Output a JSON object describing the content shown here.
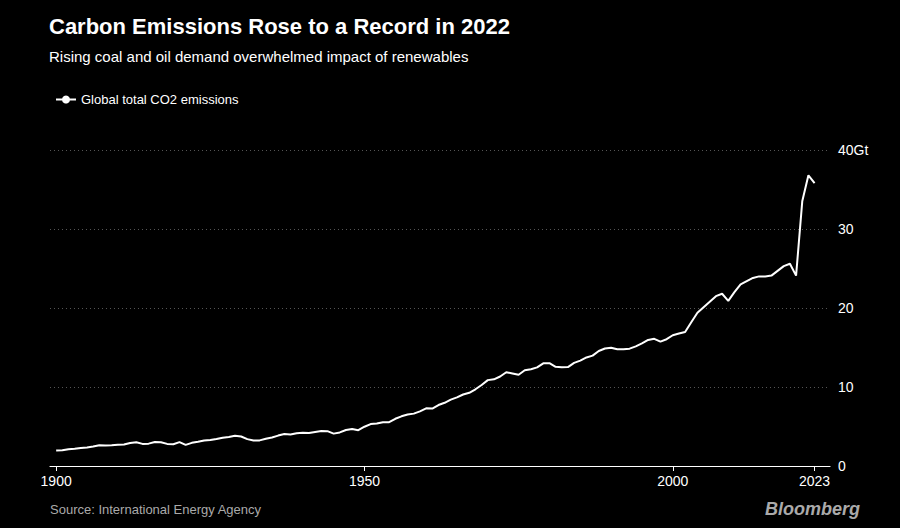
{
  "chart_data": {
    "type": "line",
    "title": "Carbon Emissions Rose to a Record in 2022",
    "subtitle": "Rising coal and oil demand overwhelmed impact of renewables",
    "annotations": [
      "Source: International Energy Agency",
      "Bloomberg"
    ],
    "legend": "top-left",
    "grid": true,
    "xlim": [
      1899,
      2025.5
    ],
    "xticks": [
      1900,
      1950,
      2000,
      2023
    ],
    "ylim": [
      0,
      40
    ],
    "yticks": [
      0,
      10,
      20,
      30,
      {
        "value": 40,
        "label": "40Gt"
      }
    ],
    "x": [
      1900,
      1901,
      1902,
      1903,
      1904,
      1905,
      1906,
      1907,
      1908,
      1909,
      1910,
      1911,
      1912,
      1913,
      1914,
      1915,
      1916,
      1917,
      1918,
      1919,
      1920,
      1921,
      1922,
      1923,
      1924,
      1925,
      1926,
      1927,
      1928,
      1929,
      1930,
      1931,
      1932,
      1933,
      1934,
      1935,
      1936,
      1937,
      1938,
      1939,
      1940,
      1941,
      1942,
      1943,
      1944,
      1945,
      1946,
      1947,
      1948,
      1949,
      1950,
      1951,
      1952,
      1953,
      1954,
      1955,
      1956,
      1957,
      1958,
      1959,
      1960,
      1961,
      1962,
      1963,
      1964,
      1965,
      1966,
      1967,
      1968,
      1969,
      1970,
      1971,
      1972,
      1973,
      1974,
      1975,
      1976,
      1977,
      1978,
      1979,
      1980,
      1981,
      1982,
      1983,
      1984,
      1985,
      1986,
      1987,
      1988,
      1989,
      1990,
      1991,
      1992,
      1993,
      1994,
      1995,
      1996,
      1997,
      1998,
      1999,
      2000,
      2001,
      2002,
      2003,
      2004,
      2005,
      2006,
      2007,
      2008,
      2009,
      2010,
      2011,
      2012,
      2013,
      2014,
      2015,
      2016,
      2017,
      2018,
      2019,
      2020,
      2021,
      2022,
      2023
    ],
    "series": [
      {
        "name": "Global total CO2 emissions",
        "color": "#ffffff",
        "values": [
          1.97,
          2.0,
          2.12,
          2.18,
          2.28,
          2.35,
          2.46,
          2.63,
          2.59,
          2.62,
          2.69,
          2.72,
          2.91,
          3.01,
          2.8,
          2.83,
          3.03,
          3.0,
          2.8,
          2.76,
          3.02,
          2.67,
          2.93,
          3.07,
          3.22,
          3.3,
          3.42,
          3.58,
          3.68,
          3.82,
          3.73,
          3.4,
          3.22,
          3.24,
          3.44,
          3.61,
          3.85,
          4.05,
          3.98,
          4.15,
          4.22,
          4.18,
          4.3,
          4.42,
          4.41,
          4.1,
          4.25,
          4.56,
          4.68,
          4.53,
          4.97,
          5.31,
          5.37,
          5.55,
          5.54,
          5.98,
          6.29,
          6.51,
          6.63,
          6.92,
          7.3,
          7.27,
          7.72,
          8.0,
          8.4,
          8.68,
          9.05,
          9.27,
          9.71,
          10.26,
          10.87,
          10.97,
          11.33,
          11.87,
          11.72,
          11.55,
          12.12,
          12.25,
          12.48,
          13.0,
          13.01,
          12.56,
          12.5,
          12.52,
          13.05,
          13.34,
          13.74,
          13.97,
          14.56,
          14.87,
          14.97,
          14.79,
          14.77,
          14.85,
          15.15,
          15.52,
          15.96,
          16.1,
          15.75,
          16.05,
          16.55,
          16.77,
          16.97,
          18.2,
          19.4,
          20.1,
          20.8,
          21.5,
          21.8,
          20.9,
          22.0,
          23.0,
          23.4,
          23.8,
          24.0,
          24.0,
          24.1,
          24.7,
          25.3,
          25.6,
          24.1,
          33.5,
          36.8,
          35.8
        ]
      }
    ]
  }
}
